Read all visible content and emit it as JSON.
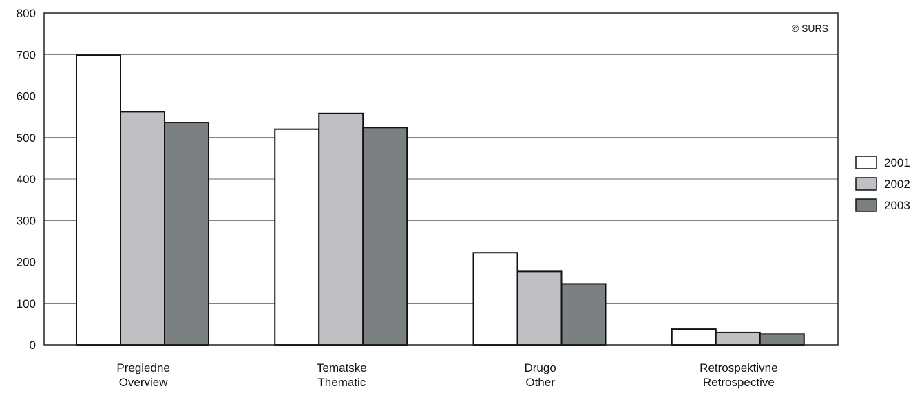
{
  "chart_data": {
    "type": "bar",
    "categories": [
      [
        "Pregledne",
        "Overview"
      ],
      [
        "Tematske",
        "Thematic"
      ],
      [
        "Drugo",
        "Other"
      ],
      [
        "Retrospektivne",
        "Retrospective"
      ]
    ],
    "series": [
      {
        "name": "2001",
        "color": "#ffffff",
        "values": [
          698,
          520,
          222,
          38
        ]
      },
      {
        "name": "2002",
        "color": "#c0c0c4",
        "values": [
          562,
          558,
          177,
          30
        ]
      },
      {
        "name": "2003",
        "color": "#7b8083",
        "values": [
          536,
          524,
          147,
          26
        ]
      }
    ],
    "ylim": [
      0,
      800
    ],
    "yticks": [
      "0",
      "100",
      "200",
      "300",
      "400",
      "500",
      "600",
      "700",
      "800"
    ],
    "grid": true,
    "legend_position": "right",
    "credit": "© SURS"
  }
}
